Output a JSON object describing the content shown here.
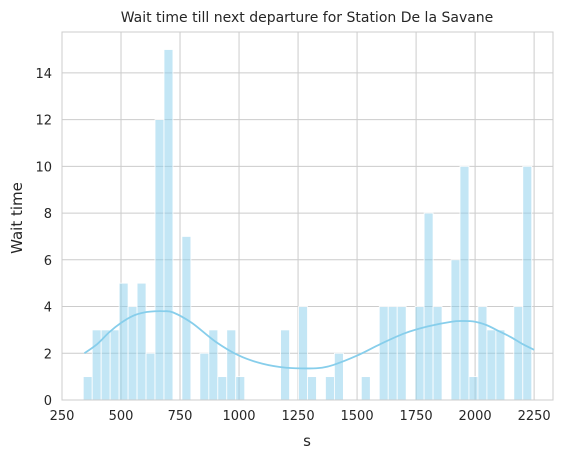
{
  "chart_data": {
    "type": "bar",
    "title": "Wait time till next departure for Station De la Savane",
    "xlabel": "s",
    "ylabel": "Wait time",
    "xlim": [
      250,
      2330
    ],
    "ylim": [
      0,
      15.75
    ],
    "xticks": [
      250,
      500,
      750,
      1000,
      1250,
      1500,
      1750,
      2000,
      2250
    ],
    "yticks": [
      0,
      2,
      4,
      6,
      8,
      10,
      12,
      14
    ],
    "grid": true,
    "bar_color": "#87ceeb",
    "kde_color": "#87ceeb",
    "bins": [
      {
        "x0": 340,
        "x1": 378,
        "count": 1
      },
      {
        "x0": 378,
        "x1": 416,
        "count": 3
      },
      {
        "x0": 416,
        "x1": 454,
        "count": 3
      },
      {
        "x0": 454,
        "x1": 492,
        "count": 3
      },
      {
        "x0": 492,
        "x1": 530,
        "count": 5
      },
      {
        "x0": 530,
        "x1": 568,
        "count": 4
      },
      {
        "x0": 568,
        "x1": 606,
        "count": 5
      },
      {
        "x0": 606,
        "x1": 644,
        "count": 2
      },
      {
        "x0": 644,
        "x1": 682,
        "count": 12
      },
      {
        "x0": 682,
        "x1": 720,
        "count": 15
      },
      {
        "x0": 758,
        "x1": 796,
        "count": 7
      },
      {
        "x0": 834,
        "x1": 872,
        "count": 2
      },
      {
        "x0": 872,
        "x1": 910,
        "count": 3
      },
      {
        "x0": 910,
        "x1": 948,
        "count": 1
      },
      {
        "x0": 948,
        "x1": 986,
        "count": 3
      },
      {
        "x0": 986,
        "x1": 1024,
        "count": 1
      },
      {
        "x0": 1176,
        "x1": 1214,
        "count": 3
      },
      {
        "x0": 1252,
        "x1": 1290,
        "count": 4
      },
      {
        "x0": 1290,
        "x1": 1328,
        "count": 1
      },
      {
        "x0": 1366,
        "x1": 1404,
        "count": 1
      },
      {
        "x0": 1404,
        "x1": 1442,
        "count": 2
      },
      {
        "x0": 1518,
        "x1": 1556,
        "count": 1
      },
      {
        "x0": 1594,
        "x1": 1632,
        "count": 4
      },
      {
        "x0": 1632,
        "x1": 1670,
        "count": 4
      },
      {
        "x0": 1670,
        "x1": 1708,
        "count": 4
      },
      {
        "x0": 1746,
        "x1": 1784,
        "count": 4
      },
      {
        "x0": 1784,
        "x1": 1822,
        "count": 8
      },
      {
        "x0": 1822,
        "x1": 1860,
        "count": 4
      },
      {
        "x0": 1898,
        "x1": 1936,
        "count": 6
      },
      {
        "x0": 1936,
        "x1": 1974,
        "count": 10
      },
      {
        "x0": 1974,
        "x1": 2012,
        "count": 1
      },
      {
        "x0": 2012,
        "x1": 2050,
        "count": 4
      },
      {
        "x0": 2050,
        "x1": 2088,
        "count": 3
      },
      {
        "x0": 2088,
        "x1": 2126,
        "count": 3
      },
      {
        "x0": 2164,
        "x1": 2202,
        "count": 4
      },
      {
        "x0": 2202,
        "x1": 2240,
        "count": 10
      }
    ],
    "kde": {
      "x": [
        345,
        400,
        450,
        500,
        550,
        600,
        650,
        680,
        720,
        800,
        900,
        1000,
        1100,
        1200,
        1300,
        1350,
        1400,
        1500,
        1600,
        1700,
        1800,
        1900,
        1950,
        2000,
        2050,
        2100,
        2150,
        2200,
        2250
      ],
      "y": [
        2.0,
        2.4,
        2.9,
        3.3,
        3.6,
        3.75,
        3.8,
        3.8,
        3.75,
        3.3,
        2.5,
        1.9,
        1.55,
        1.38,
        1.35,
        1.38,
        1.5,
        1.9,
        2.4,
        2.85,
        3.15,
        3.35,
        3.38,
        3.35,
        3.2,
        2.95,
        2.7,
        2.4,
        2.15
      ]
    }
  }
}
